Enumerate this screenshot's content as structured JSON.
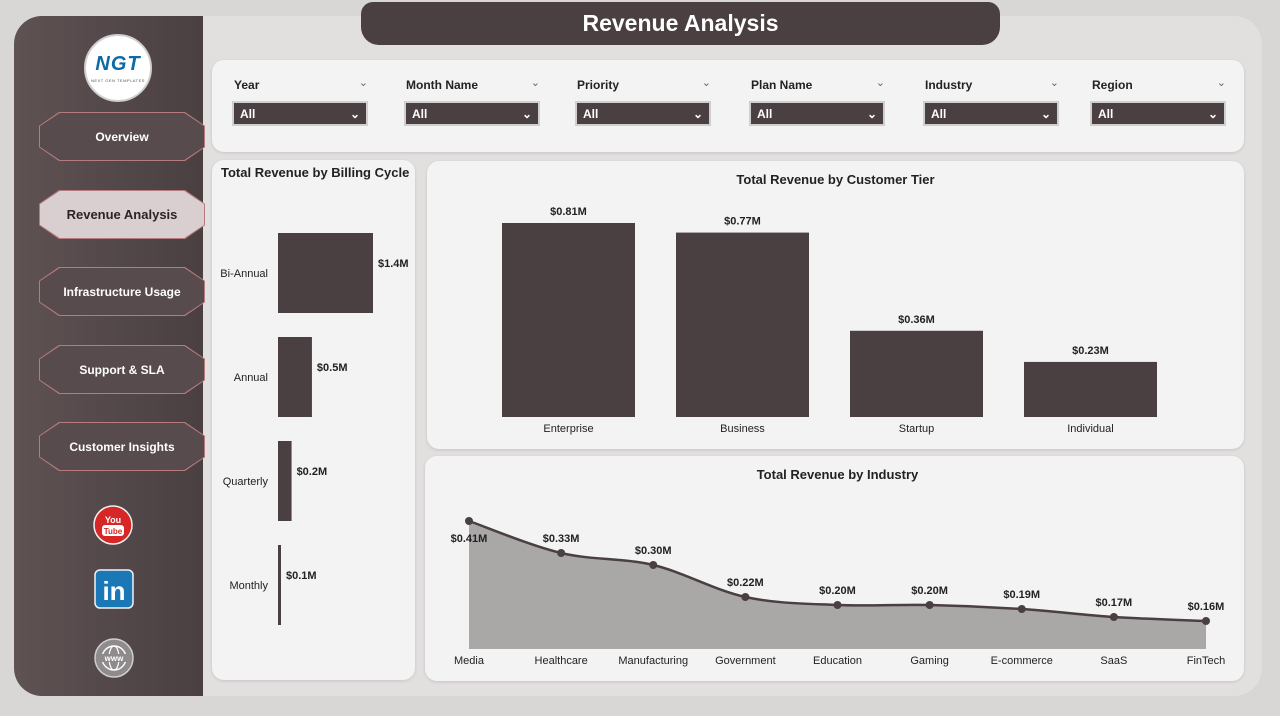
{
  "header": {
    "title": "Revenue Analysis"
  },
  "logo": {
    "text": "NGT",
    "subtext": "NEXT GEN TEMPLATES"
  },
  "nav": [
    {
      "label": "Overview",
      "active": false
    },
    {
      "label": "Revenue Analysis",
      "active": true
    },
    {
      "label": "Infrastructure Usage",
      "active": false
    },
    {
      "label": "Support & SLA",
      "active": false
    },
    {
      "label": "Customer Insights",
      "active": false
    }
  ],
  "social": [
    {
      "icon": "youtube-icon",
      "label": "You Tube"
    },
    {
      "icon": "linkedin-icon",
      "label": "in"
    },
    {
      "icon": "globe-icon",
      "label": "www"
    }
  ],
  "filters": [
    {
      "label": "Year",
      "value": "All"
    },
    {
      "label": "Month Name",
      "value": "All"
    },
    {
      "label": "Priority",
      "value": "All"
    },
    {
      "label": "Plan Name",
      "value": "All"
    },
    {
      "label": "Industry",
      "value": "All"
    },
    {
      "label": "Region",
      "value": "All"
    }
  ],
  "colors": {
    "bar": "#4a3f41",
    "area": "#aaa7a7",
    "line": "#4a3f41",
    "accent": "#b77a7d"
  },
  "chart_data": [
    {
      "type": "bar",
      "orientation": "horizontal",
      "title": "Total Revenue by Billing Cycle",
      "categories": [
        "Bi-Annual",
        "Annual",
        "Quarterly",
        "Monthly"
      ],
      "values": [
        1.4,
        0.5,
        0.2,
        0.1
      ],
      "labels": [
        "$1.4M",
        "$0.5M",
        "$0.2M",
        "$0.1M"
      ],
      "xlim": [
        0,
        1.4
      ]
    },
    {
      "type": "bar",
      "title": "Total Revenue by Customer Tier",
      "categories": [
        "Enterprise",
        "Business",
        "Startup",
        "Individual"
      ],
      "values": [
        0.81,
        0.77,
        0.36,
        0.23
      ],
      "labels": [
        "$0.81M",
        "$0.77M",
        "$0.36M",
        "$0.23M"
      ],
      "ylim": [
        0,
        0.81
      ]
    },
    {
      "type": "area",
      "title": "Total Revenue by Industry",
      "categories": [
        "Media",
        "Healthcare",
        "Manufacturing",
        "Government",
        "Education",
        "Gaming",
        "E-commerce",
        "SaaS",
        "FinTech"
      ],
      "values": [
        0.41,
        0.33,
        0.3,
        0.22,
        0.2,
        0.2,
        0.19,
        0.17,
        0.16
      ],
      "labels": [
        "$0.41M",
        "$0.33M",
        "$0.30M",
        "$0.22M",
        "$0.20M",
        "$0.20M",
        "$0.19M",
        "$0.17M",
        "$0.16M"
      ],
      "ylim": [
        0,
        0.41
      ]
    }
  ]
}
